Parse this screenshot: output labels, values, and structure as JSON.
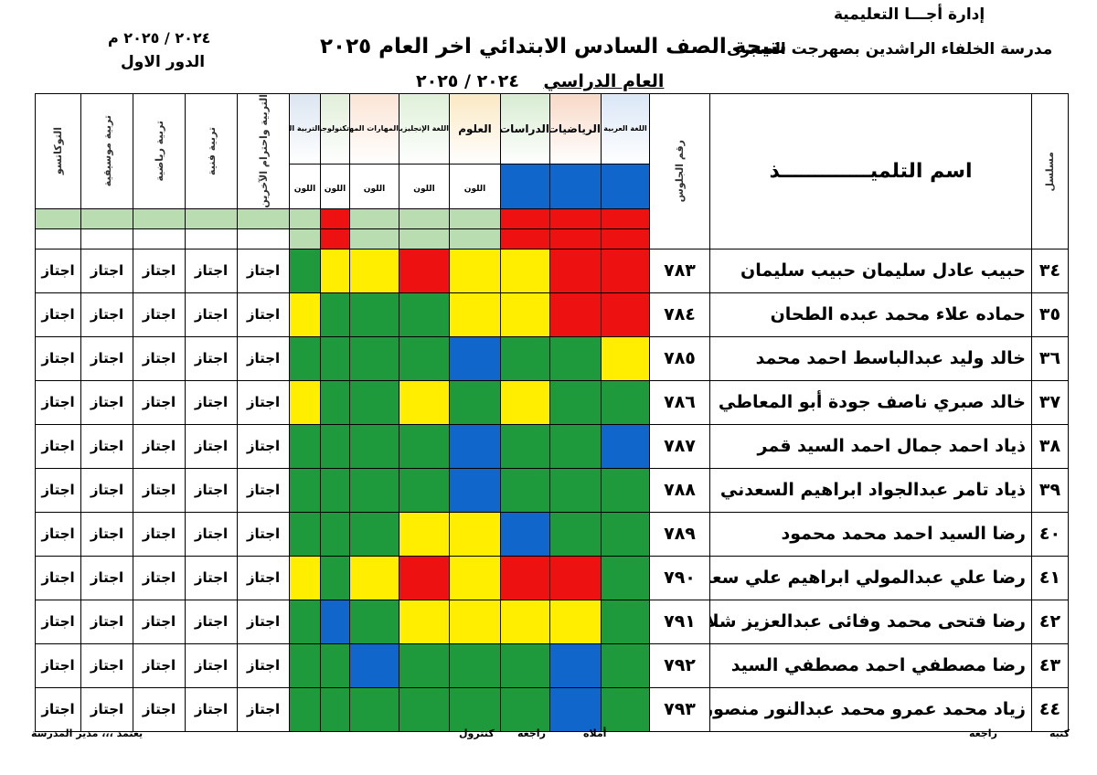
{
  "header": {
    "admin": "إدارة  أجـــا التعليمية",
    "school": "مدرسة الخلفاء الراشدين بصهرجت الصغرى",
    "result_title": "نتيجة الصف السادس الابتدائي    اخر العام ٢٠٢٥",
    "year_prefix": "العام الدراسي",
    "year_value": "٢٠٢٤ / ٢٠٢٥",
    "year_right": "٢٠٢٤ / ٢٠٢٥ م",
    "round": "الدور الاول"
  },
  "columns": {
    "serial": "مسلسل",
    "name": "اسم التلميـــــــــــــذ",
    "seat": "رقم الجلوس",
    "subjects": [
      "اللغة العربية",
      "الرياضيات",
      "الدراسات",
      "العلوم",
      "اللغة الإنجليزية",
      "المهارات المهنية",
      "تكنولوجيا المعلومات",
      "التربية الدينية"
    ],
    "color_label": "اللون",
    "activities": [
      "التربية واحترام الآخرين",
      "تربية فنية",
      "تربية رياضية",
      "تربية موسيقية",
      "التوكاتسو"
    ]
  },
  "colors": {
    "green": "#1e9a3c",
    "yellow": "#ffee00",
    "red": "#ee1111",
    "blue": "#1166cc"
  },
  "students": [
    {
      "serial": "٣٤",
      "name": "حبيب عادل سليمان حبيب سليمان",
      "seat": "٧٨٣",
      "grades": [
        "red",
        "red",
        "yellow",
        "yellow",
        "red",
        "yellow",
        "yellow",
        "green"
      ],
      "activities": [
        "اجتاز",
        "اجتاز",
        "اجتاز",
        "اجتاز",
        "اجتاز"
      ]
    },
    {
      "serial": "٣٥",
      "name": "حماده علاء محمد عبده الطحان",
      "seat": "٧٨٤",
      "grades": [
        "red",
        "red",
        "yellow",
        "yellow",
        "green",
        "green",
        "green",
        "yellow"
      ],
      "activities": [
        "اجتاز",
        "اجتاز",
        "اجتاز",
        "اجتاز",
        "اجتاز"
      ]
    },
    {
      "serial": "٣٦",
      "name": "خالد وليد عبدالباسط احمد محمد",
      "seat": "٧٨٥",
      "grades": [
        "yellow",
        "green",
        "green",
        "blue",
        "green",
        "green",
        "green",
        "green"
      ],
      "activities": [
        "اجتاز",
        "اجتاز",
        "اجتاز",
        "اجتاز",
        "اجتاز"
      ]
    },
    {
      "serial": "٣٧",
      "name": "خالد صبري ناصف جودة أبو المعاطي",
      "seat": "٧٨٦",
      "grades": [
        "green",
        "green",
        "yellow",
        "green",
        "yellow",
        "green",
        "green",
        "yellow"
      ],
      "activities": [
        "اجتاز",
        "اجتاز",
        "اجتاز",
        "اجتاز",
        "اجتاز"
      ]
    },
    {
      "serial": "٣٨",
      "name": "ذياد احمد جمال احمد السيد قمر",
      "seat": "٧٨٧",
      "grades": [
        "blue",
        "green",
        "green",
        "blue",
        "green",
        "green",
        "green",
        "green"
      ],
      "activities": [
        "اجتاز",
        "اجتاز",
        "اجتاز",
        "اجتاز",
        "اجتاز"
      ]
    },
    {
      "serial": "٣٩",
      "name": "ذياد تامر عبدالجواد ابراهيم السعدني",
      "seat": "٧٨٨",
      "grades": [
        "green",
        "green",
        "green",
        "blue",
        "green",
        "green",
        "green",
        "green"
      ],
      "activities": [
        "اجتاز",
        "اجتاز",
        "اجتاز",
        "اجتاز",
        "اجتاز"
      ]
    },
    {
      "serial": "٤٠",
      "name": "رضا السيد احمد محمد محمود",
      "seat": "٧٨٩",
      "grades": [
        "green",
        "green",
        "blue",
        "yellow",
        "yellow",
        "green",
        "green",
        "green"
      ],
      "activities": [
        "اجتاز",
        "اجتاز",
        "اجتاز",
        "اجتاز",
        "اجتاز"
      ]
    },
    {
      "serial": "٤١",
      "name": "رضا علي عبدالمولي ابراهيم علي سعد",
      "seat": "٧٩٠",
      "grades": [
        "green",
        "red",
        "red",
        "yellow",
        "red",
        "yellow",
        "green",
        "yellow"
      ],
      "activities": [
        "اجتاز",
        "اجتاز",
        "اجتاز",
        "اجتاز",
        "اجتاز"
      ]
    },
    {
      "serial": "٤٢",
      "name": "رضا فتحى محمد وفائى عبدالعزيز شلاطه",
      "seat": "٧٩١",
      "grades": [
        "green",
        "yellow",
        "yellow",
        "yellow",
        "yellow",
        "green",
        "blue",
        "green"
      ],
      "activities": [
        "اجتاز",
        "اجتاز",
        "اجتاز",
        "اجتاز",
        "اجتاز"
      ]
    },
    {
      "serial": "٤٣",
      "name": "رضا مصطفي احمد مصطفي السيد",
      "seat": "٧٩٢",
      "grades": [
        "green",
        "blue",
        "green",
        "green",
        "green",
        "blue",
        "green",
        "green"
      ],
      "activities": [
        "اجتاز",
        "اجتاز",
        "اجتاز",
        "اجتاز",
        "اجتاز"
      ]
    },
    {
      "serial": "٤٤",
      "name": "زياد محمد عمرو محمد عبدالنور منصور",
      "seat": "٧٩٣",
      "grades": [
        "green",
        "blue",
        "green",
        "green",
        "green",
        "green",
        "green",
        "green"
      ],
      "activities": [
        "اجتاز",
        "اجتاز",
        "اجتاز",
        "اجتاز",
        "اجتاز"
      ]
    }
  ],
  "footer": {
    "wrote": "كتبه",
    "reviewed": "راجعه",
    "dictated": "أملاه",
    "reviewed2": "راجعه",
    "control": "كنترول",
    "approved": "يعتمد ،،، مدير المدرسة"
  }
}
